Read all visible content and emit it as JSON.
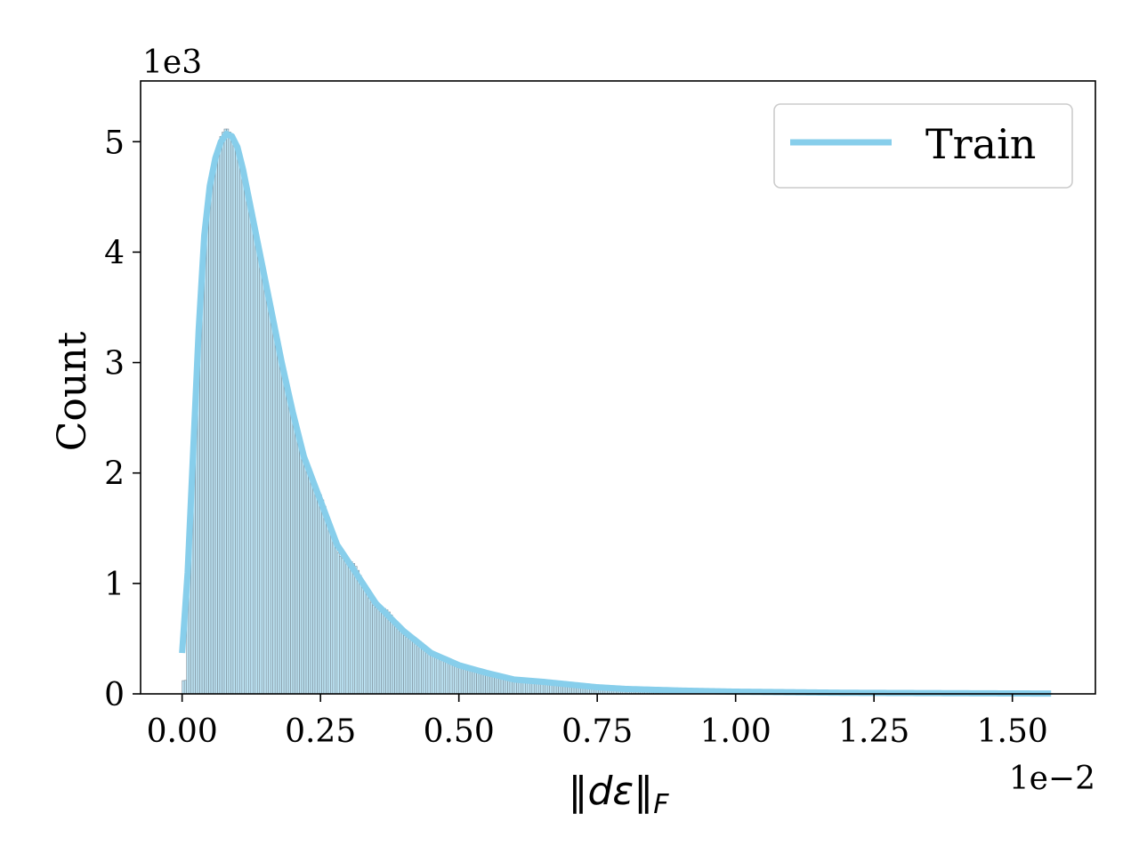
{
  "chart_data": {
    "type": "bar",
    "subtype": "histogram_with_kde",
    "title": "",
    "xlabel": "‖dε‖",
    "xlabel_subscript": "F",
    "ylabel": "Count",
    "x_offset_label": "1e−2",
    "y_offset_label": "1e3",
    "x_ticks": [
      0.0,
      0.25,
      0.5,
      0.75,
      1.0,
      1.25,
      1.5
    ],
    "x_tick_labels": [
      "0.00",
      "0.25",
      "0.50",
      "0.75",
      "1.00",
      "1.25",
      "1.50"
    ],
    "y_ticks": [
      0,
      1,
      2,
      3,
      4,
      5
    ],
    "y_tick_labels": [
      "0",
      "1",
      "2",
      "3",
      "4",
      "5"
    ],
    "xlim": [
      -0.075,
      1.65
    ],
    "ylim": [
      0,
      5.55
    ],
    "grid": false,
    "legend": {
      "position": "top-right",
      "entries": [
        "Train"
      ]
    },
    "series": [
      {
        "name": "Train",
        "kind": "kde_line",
        "color": "#87CEEB",
        "x": [
          0.0,
          0.01,
          0.02,
          0.03,
          0.04,
          0.05,
          0.06,
          0.07,
          0.08,
          0.09,
          0.1,
          0.11,
          0.12,
          0.14,
          0.16,
          0.18,
          0.2,
          0.22,
          0.25,
          0.28,
          0.3,
          0.32,
          0.35,
          0.4,
          0.45,
          0.5,
          0.55,
          0.6,
          0.65,
          0.7,
          0.75,
          0.8,
          0.9,
          1.0,
          1.1,
          1.2,
          1.3,
          1.4,
          1.5,
          1.57
        ],
        "y": [
          0.37,
          1.1,
          2.2,
          3.3,
          4.15,
          4.6,
          4.85,
          5.0,
          5.07,
          5.05,
          4.95,
          4.75,
          4.5,
          4.0,
          3.5,
          3.0,
          2.55,
          2.15,
          1.75,
          1.35,
          1.2,
          1.05,
          0.82,
          0.57,
          0.37,
          0.26,
          0.19,
          0.13,
          0.11,
          0.085,
          0.06,
          0.045,
          0.03,
          0.02,
          0.015,
          0.01,
          0.008,
          0.006,
          0.004,
          0.003
        ]
      },
      {
        "name": "",
        "kind": "histogram",
        "color": "#87CEEB",
        "edge_color": "#7f8f99",
        "bin_width": 0.004,
        "x_range": [
          0.0,
          1.57
        ]
      }
    ]
  }
}
